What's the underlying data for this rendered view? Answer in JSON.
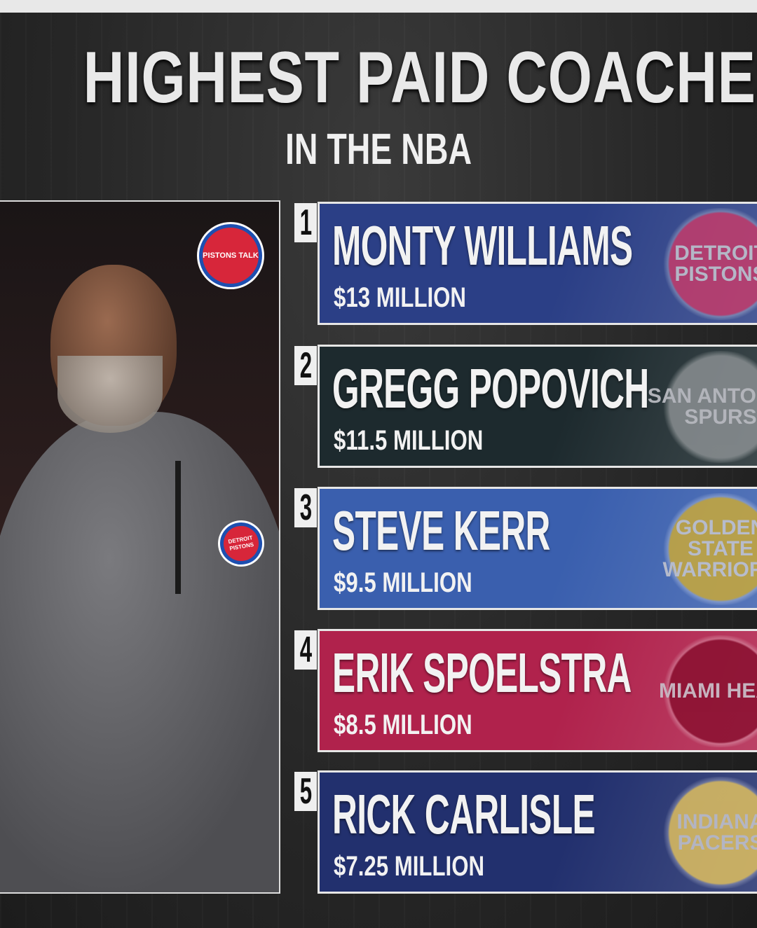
{
  "title": "HIGHEST PAID COACHES",
  "subtitle": "IN THE NBA",
  "photo": {
    "watermark": "PISTONS TALK",
    "chest_logo": "DETROIT PISTONS"
  },
  "coaches": [
    {
      "rank": "1",
      "name": "MONTY WILLIAMS",
      "salary": "$13 MILLION",
      "team_logo": "DETROIT PISTONS",
      "color": "#2b3f86",
      "logo_color": "#c43c6b"
    },
    {
      "rank": "2",
      "name": "GREGG POPOVICH",
      "salary": "$11.5 MILLION",
      "team_logo": "SAN ANTONIO SPURS",
      "color": "#1d2a2e",
      "logo_color": "#8a8f92"
    },
    {
      "rank": "3",
      "name": "STEVE KERR",
      "salary": "$9.5 MILLION",
      "team_logo": "GOLDEN STATE WARRIORS",
      "color": "#3a5fae",
      "logo_color": "#c9a93a"
    },
    {
      "rank": "4",
      "name": "ERIK SPOELSTRA",
      "salary": "$8.5 MILLION",
      "team_logo": "MIAMI HEAT",
      "color": "#b0224c",
      "logo_color": "#8a1030"
    },
    {
      "rank": "5",
      "name": "RICK CARLISLE",
      "salary": "$7.25 MILLION",
      "team_logo": "INDIANA PACERS",
      "color": "#22306e",
      "logo_color": "#e0c060"
    }
  ]
}
